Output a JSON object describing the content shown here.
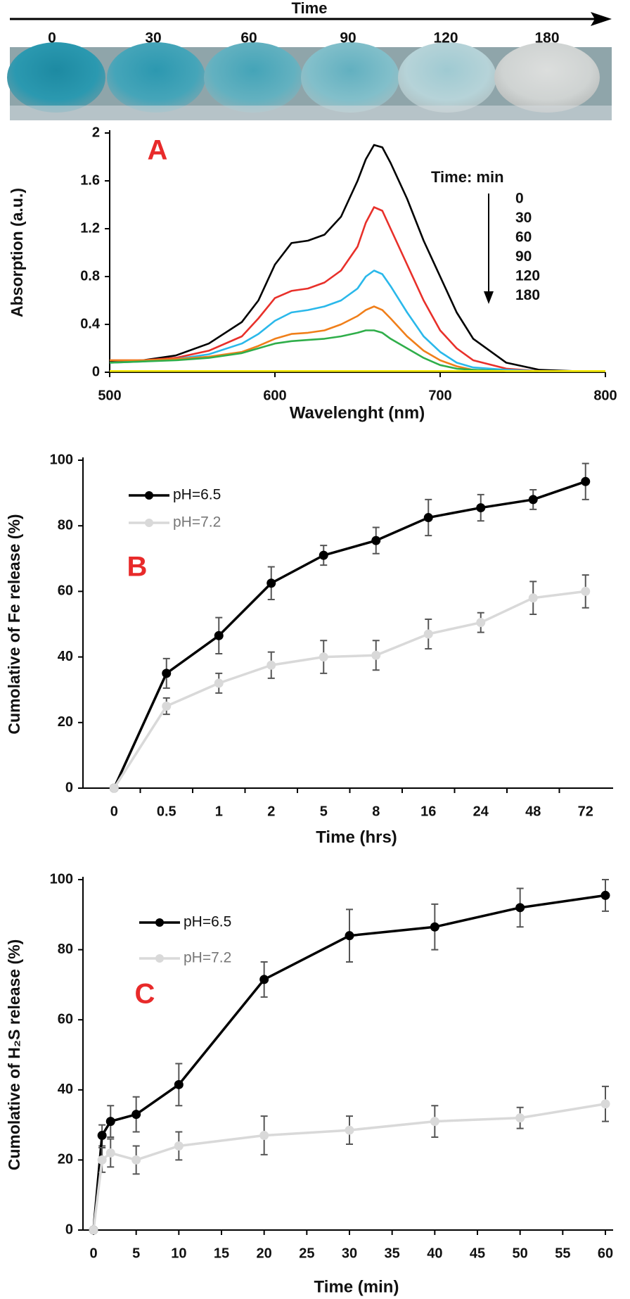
{
  "header": {
    "title": "Time",
    "time_points": [
      "0",
      "30",
      "60",
      "90",
      "120",
      "180"
    ]
  },
  "chart_data": [
    {
      "type": "line",
      "panel_label": "A",
      "y_label": "Absorption (a.u.)",
      "x_label": "Wavelenght (nm)",
      "legend_title": "Time: min",
      "x": [
        500,
        520,
        540,
        560,
        580,
        590,
        600,
        610,
        620,
        630,
        640,
        650,
        655,
        660,
        665,
        670,
        680,
        690,
        700,
        710,
        720,
        740,
        760,
        780,
        800
      ],
      "xlim": [
        500,
        800
      ],
      "xticks": [
        500,
        600,
        700,
        800
      ],
      "ylim": [
        0,
        2
      ],
      "yticks": [
        0,
        0.4,
        0.8,
        1.2,
        1.6,
        2
      ],
      "markers": false,
      "grid": false,
      "series": [
        {
          "name": "0",
          "color": "#000000",
          "values": [
            0.09,
            0.1,
            0.14,
            0.24,
            0.42,
            0.6,
            0.9,
            1.08,
            1.1,
            1.15,
            1.3,
            1.6,
            1.78,
            1.9,
            1.88,
            1.75,
            1.45,
            1.1,
            0.8,
            0.5,
            0.28,
            0.08,
            0.02,
            0.01,
            0.01
          ]
        },
        {
          "name": "30",
          "color": "#e8302a",
          "values": [
            0.1,
            0.1,
            0.12,
            0.18,
            0.3,
            0.45,
            0.62,
            0.68,
            0.7,
            0.75,
            0.85,
            1.05,
            1.25,
            1.38,
            1.35,
            1.2,
            0.9,
            0.6,
            0.35,
            0.2,
            0.1,
            0.03,
            0.01,
            0.01,
            0.01
          ]
        },
        {
          "name": "60",
          "color": "#2ab8ea",
          "values": [
            0.08,
            0.09,
            0.11,
            0.15,
            0.24,
            0.32,
            0.43,
            0.5,
            0.52,
            0.55,
            0.6,
            0.7,
            0.8,
            0.85,
            0.82,
            0.72,
            0.5,
            0.3,
            0.17,
            0.08,
            0.04,
            0.02,
            0.01,
            0.01,
            0.01
          ]
        },
        {
          "name": "90",
          "color": "#f07f1a",
          "values": [
            0.1,
            0.1,
            0.11,
            0.13,
            0.17,
            0.22,
            0.28,
            0.32,
            0.33,
            0.35,
            0.4,
            0.47,
            0.52,
            0.55,
            0.52,
            0.45,
            0.3,
            0.18,
            0.1,
            0.05,
            0.02,
            0.01,
            0.01,
            0.01,
            0.01
          ]
        },
        {
          "name": "120",
          "color": "#2fae4a",
          "values": [
            0.08,
            0.09,
            0.1,
            0.12,
            0.16,
            0.2,
            0.24,
            0.26,
            0.27,
            0.28,
            0.3,
            0.33,
            0.35,
            0.35,
            0.33,
            0.28,
            0.2,
            0.12,
            0.06,
            0.03,
            0.02,
            0.01,
            0.01,
            0.01,
            0.01
          ]
        },
        {
          "name": "180",
          "color": "#f2e600",
          "values": [
            0.01,
            0.01,
            0.01,
            0.01,
            0.01,
            0.01,
            0.01,
            0.01,
            0.01,
            0.01,
            0.01,
            0.01,
            0.01,
            0.01,
            0.01,
            0.01,
            0.01,
            0.01,
            0.01,
            0.01,
            0.01,
            0.01,
            0.01,
            0.01,
            0.01
          ]
        }
      ]
    },
    {
      "type": "line",
      "panel_label": "B",
      "y_label": "Cumolative of Fe release (%)",
      "x_label": "Time (hrs)",
      "categories": [
        "0",
        "0.5",
        "1",
        "2",
        "5",
        "8",
        "16",
        "24",
        "48",
        "72"
      ],
      "ylim": [
        0,
        100
      ],
      "yticks": [
        0,
        20,
        40,
        60,
        80,
        100
      ],
      "markers": true,
      "grid": false,
      "series": [
        {
          "name": "pH=6.5",
          "color": "#000000",
          "values": [
            0,
            35,
            46.5,
            62.5,
            71,
            75.5,
            82.5,
            85.5,
            88,
            93.5
          ],
          "errors": [
            0,
            4.5,
            5.5,
            5,
            3,
            4,
            5.5,
            4,
            3,
            5.5
          ]
        },
        {
          "name": "pH=7.2",
          "color": "#d9d9d9",
          "values": [
            0,
            25,
            32,
            37.5,
            40,
            40.5,
            47,
            50.5,
            58,
            60
          ],
          "errors": [
            0,
            2.5,
            3,
            4,
            5,
            4.5,
            4.5,
            3,
            5,
            5
          ]
        }
      ]
    },
    {
      "type": "line",
      "panel_label": "C",
      "y_label": "Cumolative of H₂S release (%)",
      "x_label": "Time (min)",
      "x": [
        0,
        1,
        2,
        5,
        10,
        20,
        30,
        40,
        50,
        60
      ],
      "xlim": [
        0,
        60
      ],
      "xticks": [
        0,
        5,
        10,
        15,
        20,
        25,
        30,
        35,
        40,
        45,
        50,
        55,
        60
      ],
      "ylim": [
        0,
        100
      ],
      "yticks": [
        0,
        20,
        40,
        60,
        80,
        100
      ],
      "markers": true,
      "grid": false,
      "series": [
        {
          "name": "pH=6.5",
          "color": "#000000",
          "values": [
            0,
            27,
            31,
            33,
            41.5,
            71.5,
            84,
            86.5,
            92,
            95.5
          ],
          "errors": [
            0,
            3,
            4.5,
            5,
            6,
            5,
            7.5,
            6.5,
            5.5,
            4.5
          ]
        },
        {
          "name": "pH=7.2",
          "color": "#d9d9d9",
          "values": [
            0,
            20,
            22,
            20,
            24,
            27,
            28.5,
            31,
            32,
            36
          ],
          "errors": [
            0,
            3.5,
            4,
            4,
            4,
            5.5,
            4,
            4.5,
            3,
            5
          ]
        }
      ]
    }
  ]
}
